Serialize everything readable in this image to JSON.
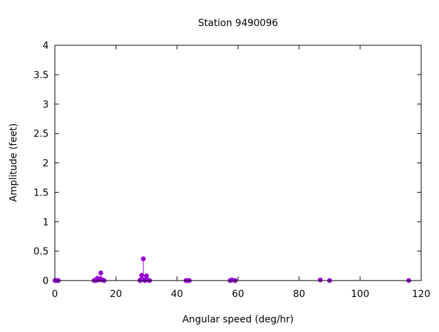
{
  "chart_data": {
    "type": "scatter",
    "style": "impulses with points",
    "title": "Station 9490096",
    "xlabel": "Angular speed (deg/hr)",
    "ylabel": "Amplitude (feet)",
    "xlim": [
      0,
      120
    ],
    "ylim": [
      0,
      4
    ],
    "xticks": [
      0,
      20,
      40,
      60,
      80,
      100,
      120
    ],
    "yticks": [
      0,
      0.5,
      1,
      1.5,
      2,
      2.5,
      3,
      3.5,
      4
    ],
    "ytick_labels": [
      "0",
      "0.5",
      "1",
      "1.5",
      "2",
      "2.5",
      "3",
      "3.5",
      "4"
    ],
    "grid": false,
    "color": "#9400d3",
    "x": [
      0.04,
      0.08,
      0.54,
      1.02,
      1.1,
      12.85,
      13.4,
      13.47,
      13.94,
      14.5,
      14.96,
      15.04,
      15.59,
      16.14,
      27.9,
      27.97,
      28.44,
      28.51,
      28.98,
      29.46,
      29.53,
      29.96,
      30.0,
      30.08,
      31.02,
      42.93,
      43.48,
      44.03,
      57.42,
      57.97,
      58.98,
      59.07,
      86.95,
      90.0,
      115.94
    ],
    "y": [
      0.0,
      0.0,
      0.0,
      0.0,
      0.0,
      0.0,
      0.01,
      0.0,
      0.04,
      0.01,
      0.03,
      0.13,
      0.01,
      0.0,
      0.0,
      0.01,
      0.09,
      0.02,
      0.37,
      0.0,
      0.01,
      0.01,
      0.08,
      0.02,
      0.0,
      0.0,
      0.0,
      0.0,
      0.0,
      0.01,
      0.0,
      0.0,
      0.01,
      0.0,
      0.0
    ]
  }
}
